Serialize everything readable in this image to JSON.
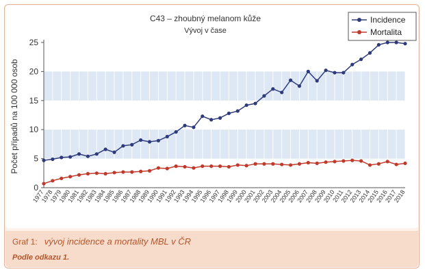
{
  "caption": {
    "label": "Graf 1:",
    "text": "vývoj incidence a mortality MBL v ČR",
    "source": "Podle odkazu 1."
  },
  "chart_data": {
    "type": "line",
    "title": "C43 – zhoubný melanom kůže",
    "subtitle": "Vývoj v čase",
    "xlabel": "",
    "ylabel": "Počet případů na 100 000 osob",
    "ylim": [
      0,
      25
    ],
    "yticks": [
      0,
      5,
      10,
      15,
      20,
      25
    ],
    "categories": [
      "1977",
      "1978",
      "1979",
      "1980",
      "1981",
      "1982",
      "1983",
      "1984",
      "1985",
      "1986",
      "1987",
      "1988",
      "1989",
      "1990",
      "1991",
      "1992",
      "1993",
      "1994",
      "1995",
      "1996",
      "1997",
      "1998",
      "1999",
      "2000",
      "2001",
      "2002",
      "2003",
      "2004",
      "2005",
      "2006",
      "2007",
      "2008",
      "2009",
      "2010",
      "2011",
      "2012",
      "2013",
      "2014",
      "2015",
      "2016",
      "2017",
      "2018"
    ],
    "series": [
      {
        "name": "Incidence",
        "color": "#2e3a7a",
        "values": [
          4.7,
          4.9,
          5.2,
          5.3,
          5.8,
          5.4,
          5.8,
          6.6,
          6.1,
          7.2,
          7.4,
          8.2,
          7.9,
          8.1,
          8.8,
          9.6,
          10.7,
          10.4,
          12.3,
          11.7,
          12.0,
          12.8,
          13.2,
          14.2,
          14.5,
          15.8,
          17.0,
          16.4,
          18.5,
          17.5,
          20.0,
          18.4,
          20.2,
          19.8,
          19.8,
          21.2,
          22.1,
          23.2,
          24.6,
          25.0,
          25.0,
          24.8
        ]
      },
      {
        "name": "Mortalita",
        "color": "#c0392b",
        "values": [
          0.7,
          1.2,
          1.6,
          1.9,
          2.2,
          2.4,
          2.5,
          2.4,
          2.6,
          2.7,
          2.7,
          2.8,
          2.9,
          3.4,
          3.3,
          3.7,
          3.6,
          3.4,
          3.7,
          3.7,
          3.7,
          3.6,
          3.9,
          3.8,
          4.1,
          4.1,
          4.1,
          4.0,
          3.9,
          4.1,
          4.3,
          4.2,
          4.4,
          4.5,
          4.6,
          4.7,
          4.6,
          3.9,
          4.1,
          4.5,
          4.0,
          4.2
        ]
      }
    ],
    "legend": "top-right",
    "grid": true
  }
}
